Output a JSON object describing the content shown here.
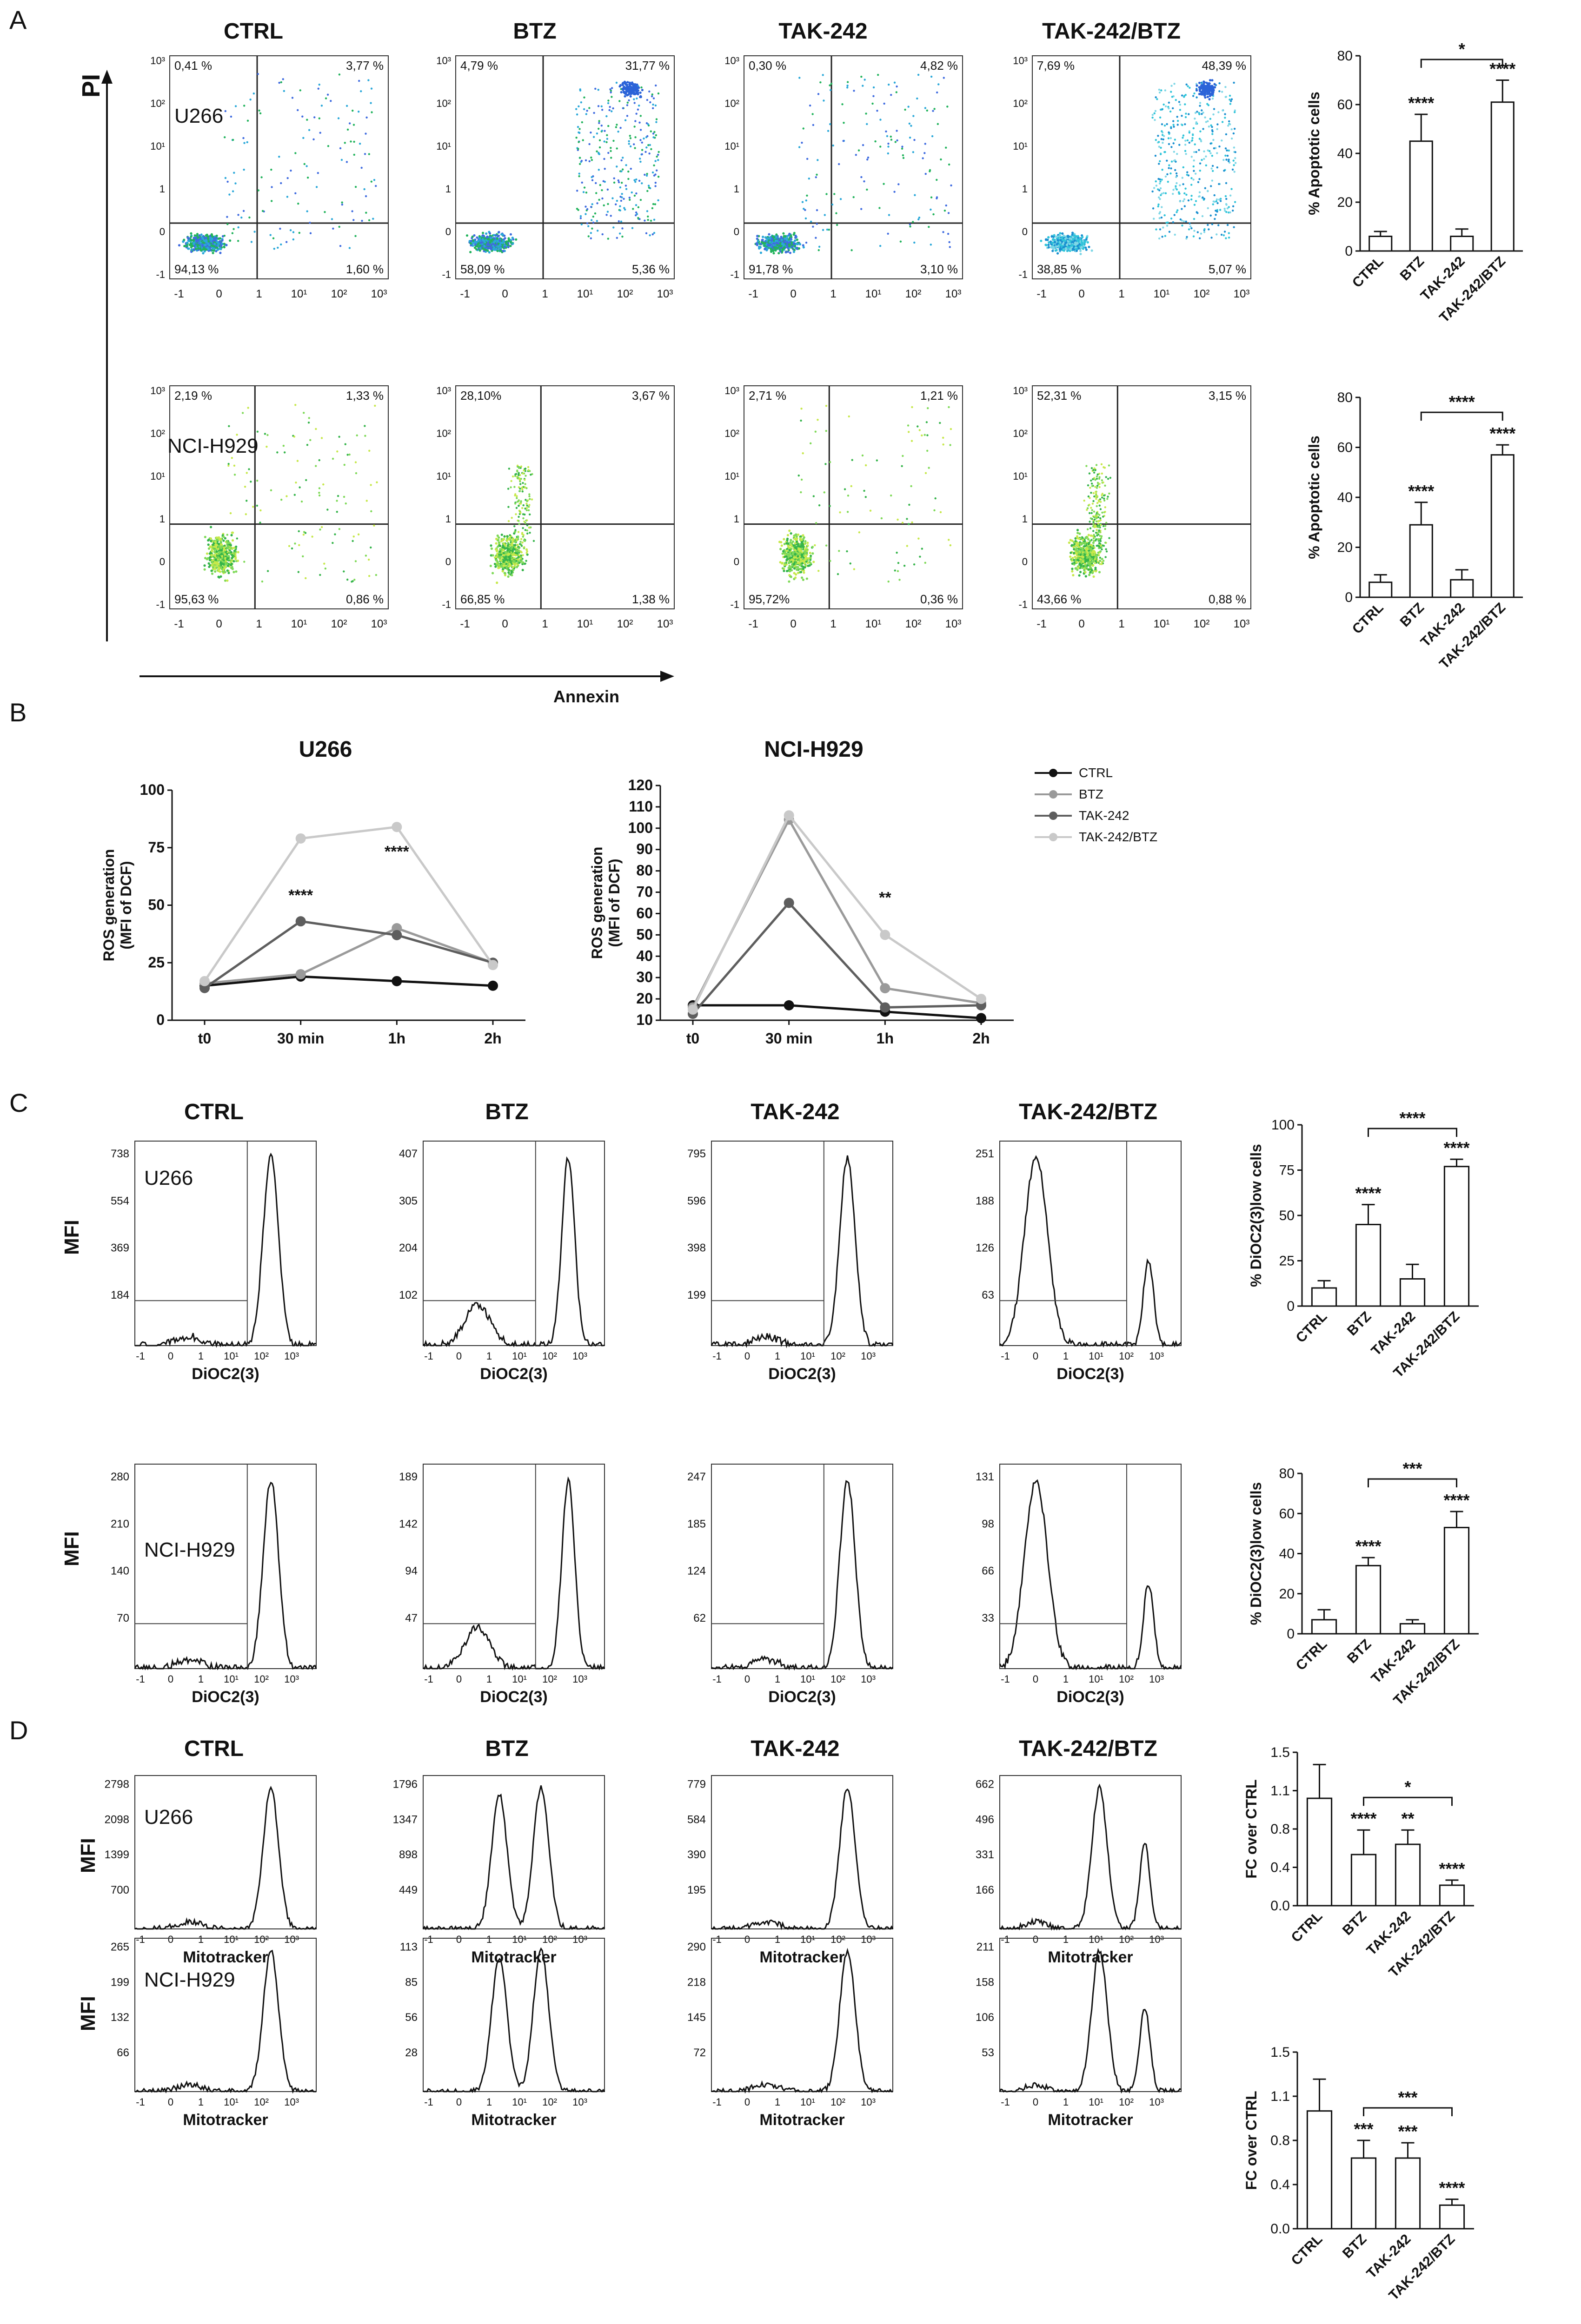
{
  "panels": {
    "a": "A",
    "b": "B",
    "c": "C",
    "d": "D"
  },
  "conditions": [
    "CTRL",
    "BTZ",
    "TAK-242",
    "TAK-242/BTZ"
  ],
  "cell_lines": [
    "U266",
    "NCI-H929"
  ],
  "axes": {
    "pi": "PI",
    "annexin": "Annexin",
    "mfi": "MFI",
    "dioc": "DiOC2(3)",
    "mitotracker": "Mitotracker",
    "apoptotic": "% Apoptotic cells",
    "dioc_low": "% DiOC2(3)low cells",
    "fc": "FC over CTRL",
    "ros": "ROS generation (MFI of DCF)"
  },
  "palette": {
    "dense": "#e05a2a",
    "mid": "#2fb34a",
    "light": "#3b6fd8",
    "teal": "#26b7c9",
    "line": "#111111"
  },
  "chart_data": [
    {
      "id": "A-u266-bar",
      "type": "bar",
      "title": "",
      "ylabel": "% Apoptotic cells",
      "ylim": [
        0,
        80
      ],
      "categories": [
        "CTRL",
        "BTZ",
        "TAK-242",
        "TAK-242/BTZ"
      ],
      "values": [
        6,
        45,
        6,
        61
      ],
      "errors": [
        2,
        11,
        3,
        9
      ],
      "bar_sig": [
        "",
        "****",
        "",
        "****"
      ],
      "bracket": {
        "from": "BTZ",
        "to": "TAK-242/BTZ",
        "label": "*"
      }
    },
    {
      "id": "A-h929-bar",
      "type": "bar",
      "title": "",
      "ylabel": "% Apoptotic cells",
      "ylim": [
        0,
        80
      ],
      "categories": [
        "CTRL",
        "BTZ",
        "TAK-242",
        "TAK-242/BTZ"
      ],
      "values": [
        6,
        29,
        7,
        57
      ],
      "errors": [
        3,
        9,
        4,
        4
      ],
      "bar_sig": [
        "",
        "****",
        "",
        "****"
      ],
      "bracket": {
        "from": "BTZ",
        "to": "TAK-242/BTZ",
        "label": "****"
      }
    },
    {
      "id": "B-u266",
      "type": "line",
      "title": "U266",
      "ylabel": "ROS generation (MFI of DCF)",
      "ylim": [
        0,
        100
      ],
      "x": [
        "t0",
        "30 min",
        "1h",
        "2h"
      ],
      "series": [
        {
          "name": "CTRL",
          "values": [
            15,
            19,
            17,
            15
          ]
        },
        {
          "name": "BTZ",
          "values": [
            16,
            20,
            40,
            25
          ]
        },
        {
          "name": "TAK-242",
          "values": [
            14,
            43,
            37,
            25
          ]
        },
        {
          "name": "TAK-242/BTZ",
          "values": [
            17,
            79,
            84,
            24
          ]
        }
      ],
      "annotations": [
        {
          "x": "30 min",
          "y": 52,
          "text": "****"
        },
        {
          "x": "1h",
          "y": 71,
          "text": "****"
        }
      ]
    },
    {
      "id": "B-h929",
      "type": "line",
      "title": "NCI-H929",
      "ylabel": "ROS generation (MFI of DCF)",
      "ylim": [
        10,
        120
      ],
      "x": [
        "t0",
        "30 min",
        "1h",
        "2h"
      ],
      "series": [
        {
          "name": "CTRL",
          "values": [
            17,
            17,
            14,
            11
          ]
        },
        {
          "name": "BTZ",
          "values": [
            16,
            104,
            25,
            18
          ]
        },
        {
          "name": "TAK-242",
          "values": [
            13,
            65,
            16,
            17
          ]
        },
        {
          "name": "TAK-242/BTZ",
          "values": [
            15,
            106,
            50,
            20
          ]
        }
      ],
      "annotations": [
        {
          "x": "1h",
          "y": 65,
          "text": "**"
        }
      ]
    },
    {
      "id": "C-u266-bar",
      "type": "bar",
      "title": "",
      "ylabel": "% DiOC2(3)low cells",
      "ylim": [
        0,
        100
      ],
      "categories": [
        "CTRL",
        "BTZ",
        "TAK-242",
        "TAK-242/BTZ"
      ],
      "values": [
        10,
        45,
        15,
        77
      ],
      "errors": [
        4,
        11,
        8,
        4
      ],
      "bar_sig": [
        "",
        "****",
        "",
        "****"
      ],
      "bracket": {
        "from": "BTZ",
        "to": "TAK-242/BTZ",
        "label": "****"
      }
    },
    {
      "id": "C-h929-bar",
      "type": "bar",
      "title": "",
      "ylabel": "% DiOC2(3)low cells",
      "ylim": [
        0,
        80
      ],
      "categories": [
        "CTRL",
        "BTZ",
        "TAK-242",
        "TAK-242/BTZ"
      ],
      "values": [
        7,
        34,
        5,
        53
      ],
      "errors": [
        5,
        4,
        2,
        8
      ],
      "bar_sig": [
        "",
        "****",
        "",
        "****"
      ],
      "bracket": {
        "from": "BTZ",
        "to": "TAK-242/BTZ",
        "label": "***"
      }
    },
    {
      "id": "D-u266-bar",
      "type": "bar",
      "title": "",
      "ylabel": "FC over CTRL",
      "ylim": [
        0,
        1.5
      ],
      "categories": [
        "CTRL",
        "BTZ",
        "TAK-242",
        "TAK-242/BTZ"
      ],
      "values": [
        1.05,
        0.5,
        0.6,
        0.2
      ],
      "errors": [
        0.33,
        0.24,
        0.14,
        0.05
      ],
      "bar_sig": [
        "",
        "****",
        "**",
        "****"
      ],
      "bracket": {
        "from": "BTZ",
        "to": "TAK-242/BTZ",
        "label": "*"
      }
    },
    {
      "id": "D-h929-bar",
      "type": "bar",
      "title": "",
      "ylabel": "FC over CTRL",
      "ylim": [
        0,
        1.5
      ],
      "categories": [
        "CTRL",
        "BTZ",
        "TAK-242",
        "TAK-242/BTZ"
      ],
      "values": [
        1.0,
        0.6,
        0.6,
        0.2
      ],
      "errors": [
        0.27,
        0.15,
        0.13,
        0.05
      ],
      "bar_sig": [
        "",
        "***",
        "***",
        "****"
      ],
      "bracket": {
        "from": "BTZ",
        "to": "TAK-242/BTZ",
        "label": "***"
      }
    }
  ],
  "flow_plots": [
    {
      "id": "u266-ctrl",
      "q": [
        "0,41 %",
        "3,77 %",
        "94,13 %",
        "1,60 %"
      ],
      "style": "dense"
    },
    {
      "id": "u266-btz",
      "q": [
        "4,79 %",
        "31,77 %",
        "58,09 %",
        "5,36 %"
      ],
      "style": "dense"
    },
    {
      "id": "u266-tak",
      "q": [
        "0,30 %",
        "4,82 %",
        "91,78 %",
        "3,10 %"
      ],
      "style": "dense"
    },
    {
      "id": "u266-combo",
      "q": [
        "7,69 %",
        "48,39 %",
        "38,85 %",
        "5,07 %"
      ],
      "style": "teal"
    },
    {
      "id": "h929-ctrl",
      "q": [
        "2,19 %",
        "1,33 %",
        "95,63 %",
        "0,86 %"
      ],
      "style": "mid"
    },
    {
      "id": "h929-btz",
      "q": [
        "28,10%",
        "3,67 %",
        "66,85 %",
        "1,38 %"
      ],
      "style": "mid"
    },
    {
      "id": "h929-tak",
      "q": [
        "2,71 %",
        "1,21 %",
        "95,72%",
        "0,36 %"
      ],
      "style": "mid"
    },
    {
      "id": "h929-combo",
      "q": [
        "52,31 %",
        "3,15 %",
        "43,66 %",
        "0,88 %"
      ],
      "style": "mid"
    }
  ],
  "hist_c": [
    {
      "id": "c-u266-ctrl",
      "ticks": [
        "738",
        "554",
        "369",
        "184"
      ],
      "shape": "single"
    },
    {
      "id": "c-u266-btz",
      "ticks": [
        "407",
        "305",
        "204",
        "102"
      ],
      "shape": "bimodal"
    },
    {
      "id": "c-u266-tak",
      "ticks": [
        "795",
        "596",
        "398",
        "199"
      ],
      "shape": "single"
    },
    {
      "id": "c-u266-combo",
      "ticks": [
        "251",
        "188",
        "126",
        "63"
      ],
      "shape": "left"
    },
    {
      "id": "c-h929-ctrl",
      "ticks": [
        "280",
        "210",
        "140",
        "70"
      ],
      "shape": "single"
    },
    {
      "id": "c-h929-btz",
      "ticks": [
        "189",
        "142",
        "94",
        "47"
      ],
      "shape": "bimodal"
    },
    {
      "id": "c-h929-tak",
      "ticks": [
        "247",
        "185",
        "124",
        "62"
      ],
      "shape": "single"
    },
    {
      "id": "c-h929-combo",
      "ticks": [
        "131",
        "98",
        "66",
        "33"
      ],
      "shape": "left"
    }
  ],
  "hist_d": [
    {
      "id": "d-u266-ctrl",
      "ticks": [
        "2798",
        "2098",
        "1399",
        "700"
      ],
      "shape": "single"
    },
    {
      "id": "d-u266-btz",
      "ticks": [
        "1796",
        "1347",
        "898",
        "449"
      ],
      "shape": "twin"
    },
    {
      "id": "d-u266-tak",
      "ticks": [
        "779",
        "584",
        "390",
        "195"
      ],
      "shape": "single"
    },
    {
      "id": "d-u266-combo",
      "ticks": [
        "662",
        "496",
        "331",
        "166"
      ],
      "shape": "leftpeak"
    },
    {
      "id": "d-h929-ctrl",
      "ticks": [
        "265",
        "199",
        "132",
        "66"
      ],
      "shape": "single"
    },
    {
      "id": "d-h929-btz",
      "ticks": [
        "113",
        "85",
        "56",
        "28"
      ],
      "shape": "twin"
    },
    {
      "id": "d-h929-tak",
      "ticks": [
        "290",
        "218",
        "145",
        "72"
      ],
      "shape": "single"
    },
    {
      "id": "d-h929-combo",
      "ticks": [
        "211",
        "158",
        "106",
        "53"
      ],
      "shape": "leftpeak"
    }
  ]
}
